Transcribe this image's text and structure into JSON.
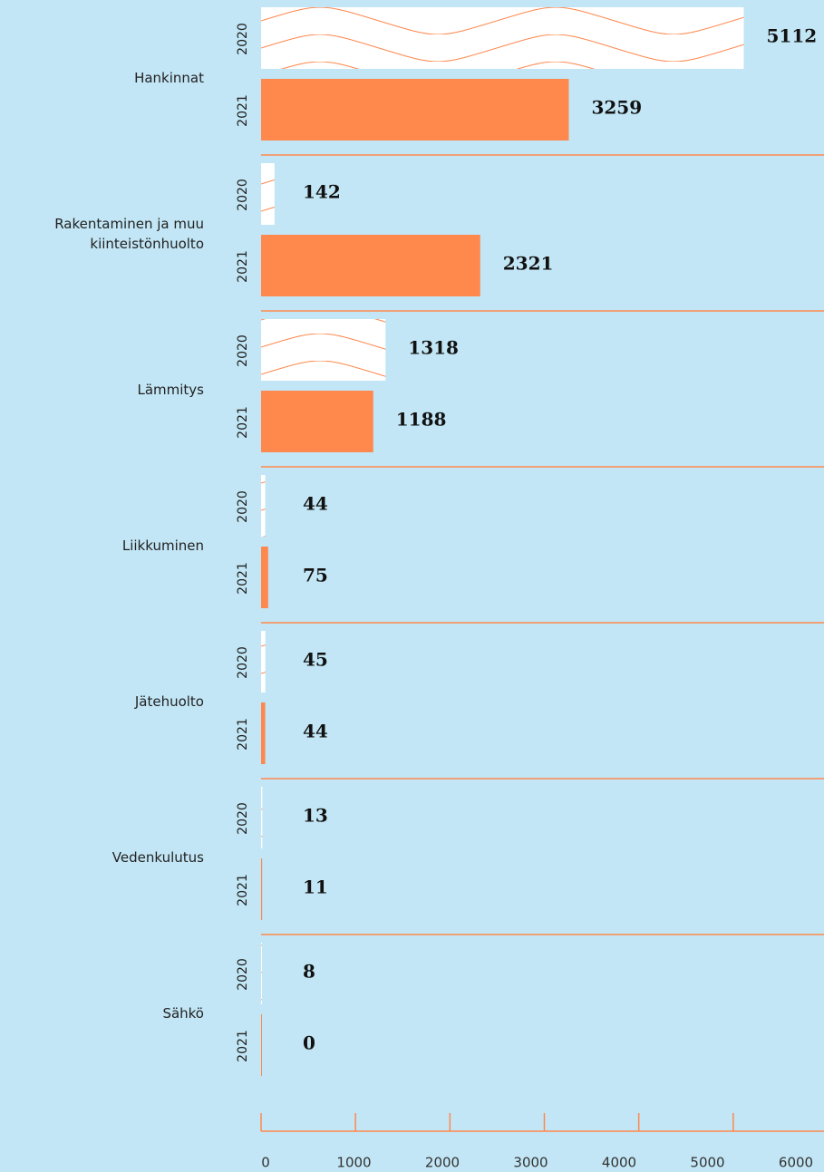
{
  "chart_data": {
    "type": "hbar",
    "categories": [
      "Hankinnat",
      "Rakentaminen ja muu kiinteistönhuolto",
      "Lämmitys",
      "Liikkuminen",
      "Jätehuolto",
      "Vedenkulutus",
      "Sähkö"
    ],
    "series": [
      {
        "name": "2020",
        "color": "#ff884d",
        "pattern": "waves",
        "values": [
          5112,
          142,
          1318,
          44,
          45,
          13,
          8
        ]
      },
      {
        "name": "2021",
        "color": "#ff884d",
        "values": [
          3259,
          2321,
          1188,
          75,
          44,
          11,
          0
        ]
      }
    ],
    "xlim": [
      0,
      6000
    ],
    "xticks": [
      0,
      1000,
      2000,
      3000,
      4000,
      5000,
      6000
    ]
  }
}
